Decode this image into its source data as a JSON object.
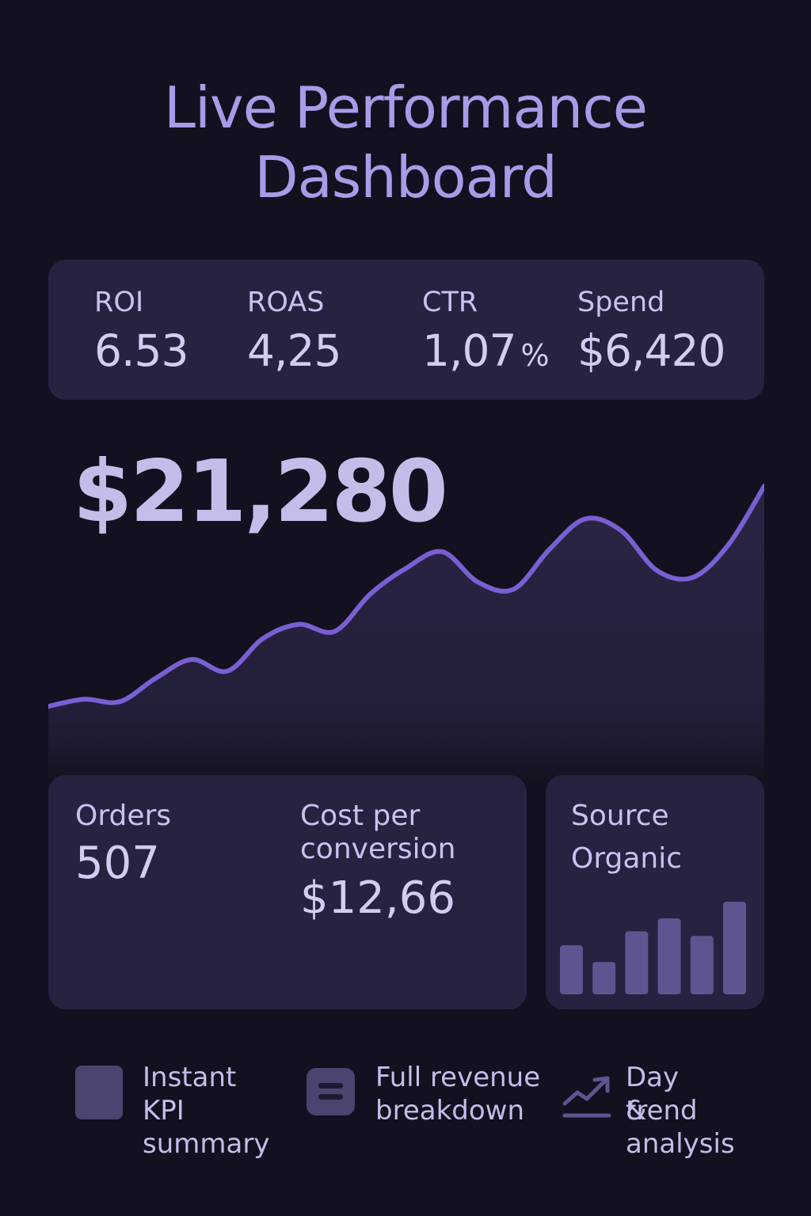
{
  "title": {
    "line1": "Live Performance",
    "line2": "Dashboard"
  },
  "kpis": [
    {
      "label": "ROI",
      "value": "6.53",
      "unit": ""
    },
    {
      "label": "ROAS",
      "value": "4,25",
      "unit": ""
    },
    {
      "label": "CTR",
      "value": "1,07",
      "unit": "%"
    },
    {
      "label": "Spend",
      "value": "$6,420",
      "unit": ""
    }
  ],
  "revenue": {
    "value": "$21,280"
  },
  "chart_data": {
    "type": "area",
    "title": "",
    "xlabel": "",
    "ylabel": "",
    "grid": false,
    "legend": "none",
    "x": [
      0,
      1,
      2,
      3,
      4,
      5,
      6,
      7,
      8,
      9,
      10,
      11,
      12,
      13,
      14,
      15,
      16,
      17,
      18,
      19,
      20
    ],
    "series": [
      {
        "values": [
          5,
          8,
          7,
          17,
          25,
          20,
          34,
          40,
          37,
          53,
          64,
          71,
          58,
          55,
          72,
          85,
          80,
          63,
          60,
          74,
          99
        ]
      }
    ],
    "ylim": [
      0,
      100
    ],
    "colors": {
      "line": "#7a5fd3",
      "fill_top": "#2a2545",
      "fill_bottom": "#16121f"
    }
  },
  "metrics": {
    "orders_label": "Orders",
    "orders_value": "507",
    "cpc_label_line1": "Cost per",
    "cpc_label_line2": "conversion",
    "cpc_value": "$12,66"
  },
  "source": {
    "label": "Source",
    "value": "Organic",
    "bar_values": [
      53,
      35,
      68,
      82,
      63,
      100
    ],
    "bar_color": "#5e5590"
  },
  "features": [
    {
      "icon": "square-icon",
      "line1": "Instant",
      "line2": "KPI",
      "line3": "summary"
    },
    {
      "icon": "menu-icon",
      "line1": "Full revenue",
      "line2": "breakdown",
      "line3": ""
    },
    {
      "icon": "trend-icon",
      "line1": "Day &",
      "line2": "trend",
      "line3": "analysis"
    }
  ],
  "colors": {
    "background": "#13101f",
    "card": "#272240",
    "accent": "#a99be8"
  }
}
